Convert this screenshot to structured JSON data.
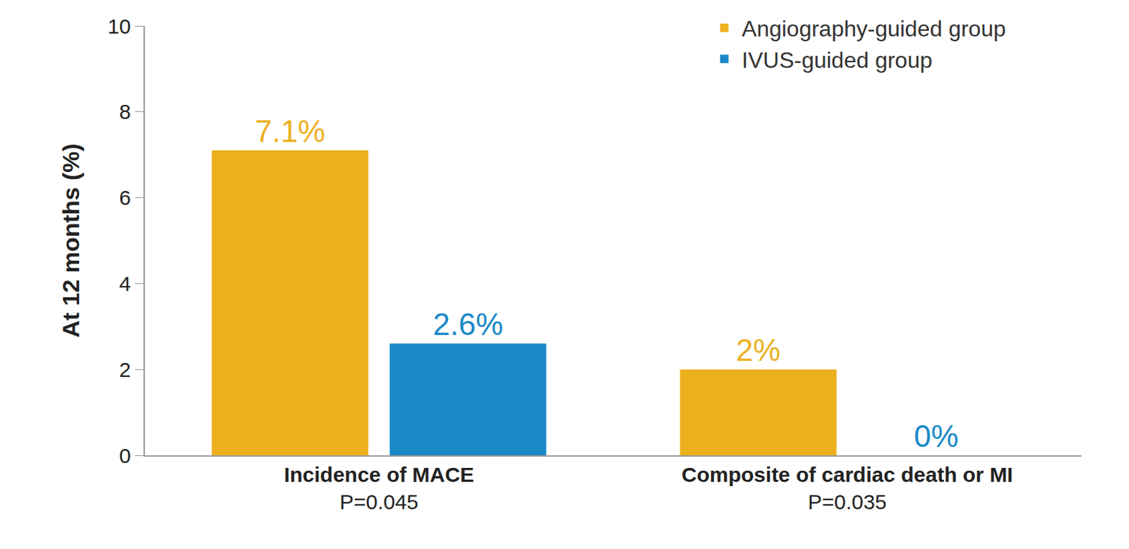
{
  "chart_data": {
    "type": "bar",
    "y_label": "At 12 months (%)",
    "categories": [
      "Incidence of MACE",
      "Composite of cardiac death or MI"
    ],
    "annotations": [
      "P=0.045",
      "P=0.035"
    ],
    "series": [
      {
        "name": "Angiography-guided group",
        "color": "#ecb01f",
        "values": [
          7.1,
          2
        ],
        "value_labels": [
          "7.1%",
          "2%"
        ]
      },
      {
        "name": "IVUS-guided group",
        "color": "#1a89c8",
        "values": [
          2.6,
          0
        ],
        "value_labels": [
          "2.6%",
          "0%"
        ]
      }
    ],
    "ylim": [
      0,
      10
    ],
    "yticks": [
      0,
      2,
      4,
      6,
      8,
      10
    ],
    "grid": false,
    "legend": "top-right",
    "data_labels": true
  }
}
